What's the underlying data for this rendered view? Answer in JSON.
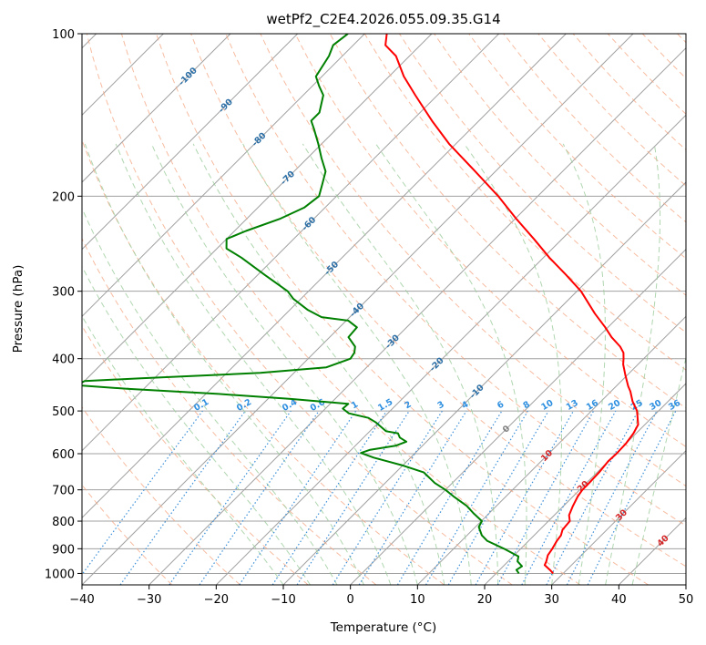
{
  "chart_data": {
    "type": "skew-t log-p",
    "title": "wetPf2_C2E4.2026.055.09.35.G14",
    "xlabel": "Temperature (°C)",
    "ylabel": "Pressure (hPa)",
    "xlim": [
      -40,
      50
    ],
    "ylim": [
      1050,
      100
    ],
    "y_scale": "log",
    "grid": true,
    "x_ticks": [
      "−40",
      "−30",
      "−20",
      "−10",
      "0",
      "10",
      "20",
      "30",
      "40",
      "50"
    ],
    "y_ticks": [
      "100",
      "200",
      "300",
      "400",
      "500",
      "600",
      "700",
      "800",
      "900",
      "1000"
    ],
    "colors": {
      "temperature": "#ff0000",
      "dewpoint": "#008000",
      "dry_adiabats": "#f4a582",
      "moist_adiabats": "#9ccc9c",
      "mixing_ratio": "#3b8fd8",
      "isotherms": "#a0a0a0",
      "isobars": "#a0a0a0",
      "isotherm_labels": "#2c6fa6",
      "mixing_ratio_labels": "#2e8fe0",
      "positive_isotherm_labels": "#d62728",
      "zero_isotherm_label": "#808080"
    },
    "isotherm_labels": [
      {
        "text": "-100",
        "t": -100,
        "p": 120
      },
      {
        "text": "-90",
        "t": -90,
        "p": 136
      },
      {
        "text": "-80",
        "t": -80,
        "p": 157
      },
      {
        "text": "-70",
        "t": -70,
        "p": 185
      },
      {
        "text": "-60",
        "t": -60,
        "p": 225
      },
      {
        "text": "-50",
        "t": -50,
        "p": 272
      },
      {
        "text": "-40",
        "t": -40,
        "p": 325
      },
      {
        "text": "-30",
        "t": -30,
        "p": 372
      },
      {
        "text": "-20",
        "t": -20,
        "p": 410
      },
      {
        "text": "-10",
        "t": -10,
        "p": 460
      },
      {
        "text": "0",
        "t": 0,
        "p": 540
      },
      {
        "text": "10",
        "t": 10,
        "p": 605
      },
      {
        "text": "20",
        "t": 20,
        "p": 690
      },
      {
        "text": "30",
        "t": 30,
        "p": 780
      },
      {
        "text": "40",
        "t": 40,
        "p": 870
      }
    ],
    "mixing_ratio_labels": [
      {
        "text": "0.1",
        "w": 0.1
      },
      {
        "text": "0.2",
        "w": 0.2
      },
      {
        "text": "0.4",
        "w": 0.4
      },
      {
        "text": "0.6",
        "w": 0.6
      },
      {
        "text": "1",
        "w": 1
      },
      {
        "text": "1.5",
        "w": 1.5
      },
      {
        "text": "2",
        "w": 2
      },
      {
        "text": "3",
        "w": 3
      },
      {
        "text": "4",
        "w": 4
      },
      {
        "text": "6",
        "w": 6
      },
      {
        "text": "8",
        "w": 8
      },
      {
        "text": "10",
        "w": 10
      },
      {
        "text": "13",
        "w": 13
      },
      {
        "text": "16",
        "w": 16
      },
      {
        "text": "20",
        "w": 20
      },
      {
        "text": "25",
        "w": 25
      },
      {
        "text": "30",
        "w": 30
      },
      {
        "text": "36",
        "w": 36
      }
    ],
    "series": [
      {
        "name": "Temperature",
        "pressure": [
          1000,
          985,
          965,
          950,
          925,
          900,
          870,
          850,
          830,
          800,
          780,
          750,
          720,
          700,
          680,
          650,
          620,
          600,
          575,
          550,
          530,
          500,
          480,
          460,
          450,
          430,
          410,
          400,
          390,
          380,
          365,
          350,
          330,
          300,
          280,
          260,
          240,
          220,
          200,
          180,
          160,
          145,
          130,
          120,
          110,
          105,
          100
        ],
        "temperature": [
          28.5,
          27.5,
          26.0,
          25.7,
          25.0,
          24.7,
          24.2,
          24.0,
          23.4,
          23.2,
          22.2,
          21.4,
          20.7,
          20.4,
          20.4,
          20.3,
          20.0,
          20.1,
          20.0,
          19.6,
          19.0,
          16.8,
          14.7,
          12.9,
          11.8,
          9.8,
          7.8,
          7.0,
          6.1,
          4.7,
          2.0,
          -0.4,
          -4.0,
          -9.4,
          -14.0,
          -19.1,
          -24.2,
          -29.9,
          -35.9,
          -43.0,
          -51.0,
          -57.0,
          -63.3,
          -67.8,
          -72.0,
          -75.2,
          -76.7
        ]
      },
      {
        "name": "Dewpoint",
        "pressure": [
          1000,
          985,
          970,
          950,
          930,
          900,
          870,
          850,
          820,
          800,
          775,
          750,
          720,
          700,
          680,
          650,
          630,
          610,
          598,
          590,
          580,
          570,
          560,
          550,
          545,
          535,
          525,
          515,
          505,
          495,
          485,
          475,
          465,
          455,
          448,
          440,
          435,
          425,
          415,
          400,
          390,
          380,
          365,
          350,
          340,
          335,
          325,
          310,
          300,
          280,
          260,
          250,
          240,
          232,
          220,
          210,
          200,
          190,
          180,
          170,
          160,
          150,
          145,
          140,
          130,
          125,
          120,
          110,
          105,
          100
        ],
        "dewpoint": [
          23.4,
          22.5,
          22.8,
          21.4,
          20.8,
          17.5,
          13.8,
          12.2,
          10.5,
          10.1,
          7.8,
          5.6,
          2.2,
          0.0,
          -2.6,
          -5.8,
          -10.2,
          -15.5,
          -18.1,
          -17.2,
          -14.0,
          -13.0,
          -14.6,
          -15.5,
          -17.6,
          -19.0,
          -20.4,
          -22.2,
          -25.8,
          -27.4,
          -27.3,
          -36.6,
          -48.1,
          -62.5,
          -70.5,
          -70.0,
          -62.0,
          -45.0,
          -36.0,
          -33.7,
          -34.0,
          -34.8,
          -37.2,
          -37.4,
          -39.7,
          -44.2,
          -47.3,
          -51.1,
          -53.1,
          -58.9,
          -65.0,
          -68.6,
          -70.0,
          -68.3,
          -65.0,
          -63.1,
          -62.6,
          -63.9,
          -65.3,
          -67.9,
          -70.5,
          -73.4,
          -75.0,
          -75.0,
          -77.0,
          -79.0,
          -80.9,
          -82.0,
          -83.0,
          -82.5
        ]
      }
    ]
  }
}
